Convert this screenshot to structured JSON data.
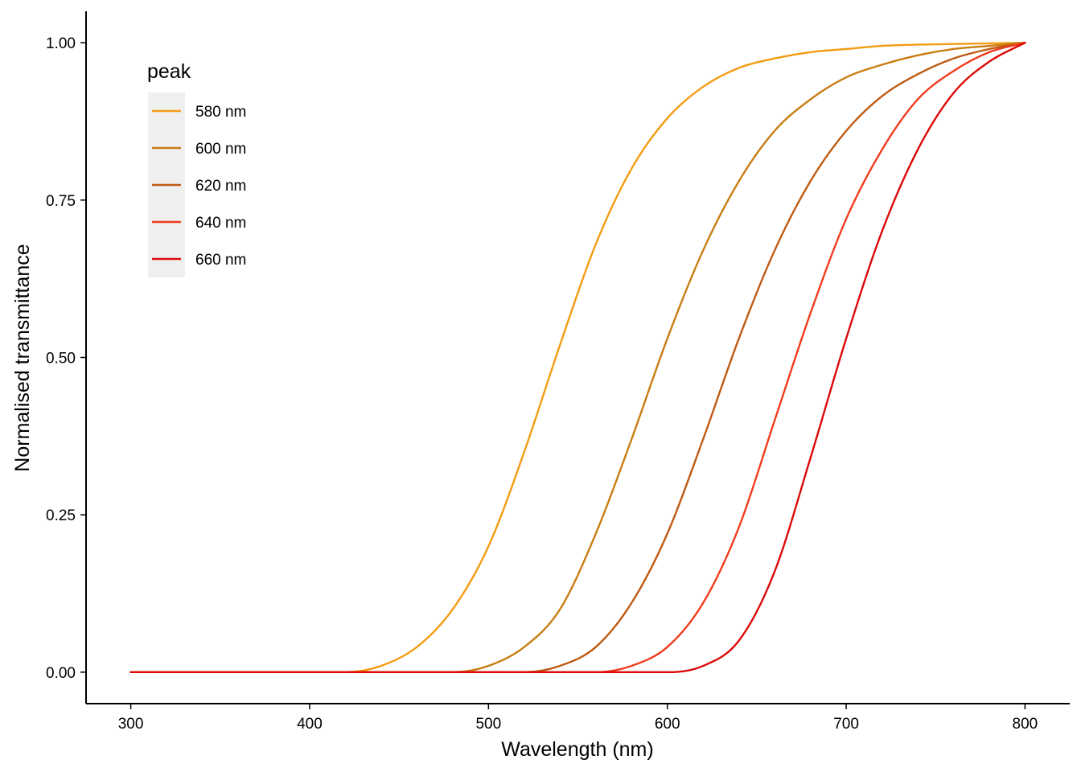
{
  "chart_data": {
    "type": "line",
    "title": "",
    "xlabel": "Wavelength (nm)",
    "ylabel": "Normalised transmittance",
    "xlim": [
      275,
      825
    ],
    "ylim": [
      -0.05,
      1.05
    ],
    "x_ticks": [
      300,
      400,
      500,
      600,
      700,
      800
    ],
    "y_ticks": [
      0.0,
      0.25,
      0.5,
      0.75,
      1.0
    ],
    "x_tick_labels": [
      "300",
      "400",
      "500",
      "600",
      "700",
      "800"
    ],
    "y_tick_labels": [
      "0.00",
      "0.25",
      "0.50",
      "0.75",
      "1.00"
    ],
    "grid": false,
    "legend": {
      "title": "peak",
      "position": "top-left"
    },
    "x": [
      300,
      400,
      420,
      440,
      460,
      480,
      500,
      520,
      540,
      560,
      580,
      600,
      620,
      640,
      660,
      680,
      700,
      720,
      740,
      760,
      780,
      800
    ],
    "series": [
      {
        "name": "580 nm",
        "color": "#F39C12",
        "values": [
          0,
          0,
          0.0,
          0.01,
          0.04,
          0.1,
          0.2,
          0.35,
          0.52,
          0.68,
          0.8,
          0.88,
          0.93,
          0.96,
          0.975,
          0.985,
          0.99,
          0.995,
          0.997,
          0.998,
          0.999,
          1.0
        ]
      },
      {
        "name": "600 nm",
        "color": "#C87D12",
        "values": [
          0,
          0,
          0,
          0,
          0.0,
          0.0,
          0.01,
          0.04,
          0.1,
          0.22,
          0.37,
          0.53,
          0.67,
          0.78,
          0.86,
          0.91,
          0.945,
          0.965,
          0.98,
          0.99,
          0.995,
          1.0
        ]
      },
      {
        "name": "620 nm",
        "color": "#BE5A12",
        "values": [
          0,
          0,
          0,
          0,
          0,
          0,
          0.0,
          0.0,
          0.01,
          0.04,
          0.11,
          0.22,
          0.37,
          0.53,
          0.67,
          0.78,
          0.86,
          0.915,
          0.95,
          0.975,
          0.99,
          1.0
        ]
      },
      {
        "name": "640 nm",
        "color": "#F03C1E",
        "values": [
          0,
          0,
          0,
          0,
          0,
          0,
          0,
          0.0,
          0.0,
          0.0,
          0.01,
          0.04,
          0.11,
          0.23,
          0.4,
          0.57,
          0.72,
          0.83,
          0.91,
          0.955,
          0.985,
          1.0
        ]
      },
      {
        "name": "660 nm",
        "color": "#DC0A0A",
        "values": [
          0,
          0,
          0,
          0,
          0,
          0,
          0,
          0,
          0,
          0.0,
          0.0,
          0.0,
          0.01,
          0.05,
          0.16,
          0.34,
          0.53,
          0.7,
          0.83,
          0.92,
          0.97,
          1.0
        ]
      }
    ]
  }
}
